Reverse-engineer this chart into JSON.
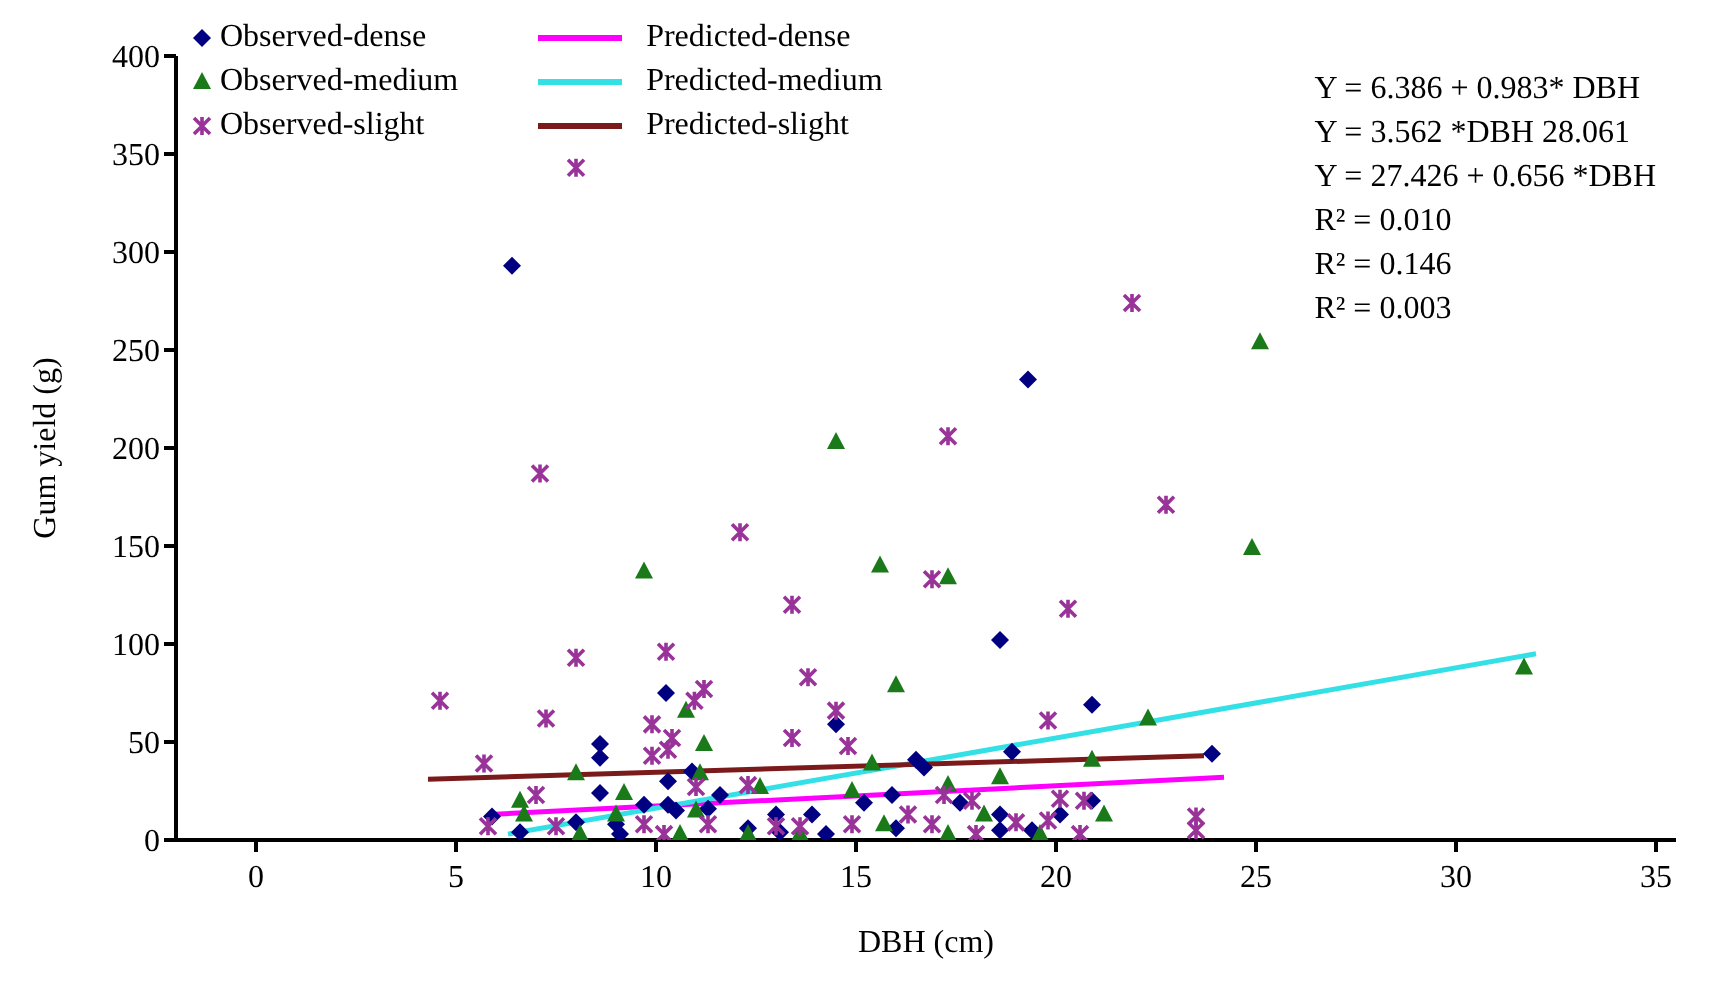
{
  "chart_data": {
    "type": "scatter",
    "xlabel": "DBH (cm)",
    "ylabel": "Gum yield (g)",
    "xlim": [
      -2,
      35.5
    ],
    "xticks": [
      0,
      5,
      10,
      15,
      20,
      25,
      30,
      35
    ],
    "ylim": [
      0,
      400
    ],
    "yticks": [
      0,
      50,
      100,
      150,
      200,
      250,
      300,
      350,
      400
    ],
    "grid": false,
    "legend": "top left",
    "annotations": [
      "Y = 6.386 + 0.983* DBH",
      "Y = 3.562 *DBH 28.061",
      "Y = 27.426 + 0.656 *DBH",
      "R² = 0.010",
      "R² = 0.146",
      "R² = 0.003"
    ],
    "series": [
      {
        "name": "Observed-dense",
        "marker": "diamond",
        "color": "#000080",
        "x": [
          6.4,
          19.3,
          18.6,
          10.25,
          20.9,
          14.5,
          8.6,
          8.6,
          23.9,
          18.9,
          10.3,
          16.5,
          16.7,
          10.9,
          8.6,
          11.6,
          9.7,
          10.3,
          20.9,
          20.1,
          5.9,
          8.0,
          9.0,
          10.5,
          11.3,
          13,
          13.9,
          15.2,
          15.9,
          17.6,
          18.6,
          16.0,
          13.1,
          14.25,
          6.6,
          18.6,
          9.1,
          19.4,
          12.3
        ],
        "values": [
          293,
          235,
          102,
          75,
          69,
          59,
          49,
          42,
          44,
          45,
          30,
          41,
          37,
          35,
          24,
          23,
          18,
          18,
          20,
          13,
          12,
          9,
          8,
          15,
          16,
          13,
          13,
          19,
          23,
          19,
          13,
          6,
          4,
          3,
          4,
          5,
          3,
          5,
          6
        ]
      },
      {
        "name": "Observed-medium",
        "marker": "triangle",
        "color": "#1a7a1a",
        "x": [
          25.1,
          14.5,
          24.9,
          9.7,
          15.6,
          17.3,
          16.0,
          31.7,
          10.75,
          11.2,
          22.3,
          20.9,
          8.0,
          11.1,
          6.6,
          9.2,
          12.6,
          15.4,
          18.6,
          17.3,
          21.2,
          9.0,
          11.0,
          14.9,
          18.2,
          6.7,
          13.6,
          10.6,
          12.3,
          17.3,
          19.6,
          8.1,
          15.7
        ],
        "values": [
          254,
          203,
          149,
          137,
          140,
          134,
          79,
          88,
          66,
          49,
          62,
          41,
          34,
          34,
          20,
          24,
          27,
          39,
          32,
          28,
          13,
          13,
          15,
          25,
          13,
          13,
          3,
          3,
          3,
          3,
          3,
          3,
          8
        ]
      },
      {
        "name": "Observed-slight",
        "marker": "cross",
        "color": "#993399",
        "x": [
          8.0,
          7.1,
          21.9,
          17.3,
          22.75,
          12.1,
          16.9,
          13.4,
          20.3,
          10.25,
          8.0,
          13.8,
          4.6,
          11.2,
          10.96,
          7.25,
          19.8,
          14.5,
          9.9,
          10.4,
          13.4,
          10.3,
          14.8,
          9.9,
          5.7,
          7.0,
          12.3,
          11.0,
          23.5,
          23.5,
          20.1,
          20.7,
          17.9,
          17.2,
          16.9,
          19.0,
          19.8,
          5.8,
          7.5,
          9.7,
          11.3,
          13.0,
          14.9,
          16.3,
          18.0,
          20.6,
          10.2,
          13.6
        ],
        "values": [
          343,
          187,
          274,
          206,
          171,
          157,
          133,
          120,
          118,
          96,
          93,
          83,
          71,
          77,
          71,
          62,
          61,
          66,
          59,
          52,
          52,
          46,
          48,
          43,
          39,
          23,
          28,
          27,
          12,
          5,
          21,
          20,
          20,
          23,
          8,
          9,
          10,
          7,
          7,
          8,
          8,
          7,
          8,
          13,
          3,
          3,
          3,
          7
        ]
      },
      {
        "name": "Predicted-dense",
        "type": "line",
        "marker": "none",
        "color": "#ff00ff",
        "x": [
          5.85,
          24.2
        ],
        "values": [
          13,
          32
        ]
      },
      {
        "name": "Predicted-medium",
        "type": "line",
        "marker": "none",
        "color": "#33e0e6",
        "x": [
          6.3,
          32
        ],
        "values": [
          3,
          95
        ]
      },
      {
        "name": "Predicted-slight",
        "type": "line",
        "marker": "none",
        "color": "#7b1a1a",
        "x": [
          4.3,
          23.7
        ],
        "values": [
          31,
          43
        ]
      }
    ]
  }
}
